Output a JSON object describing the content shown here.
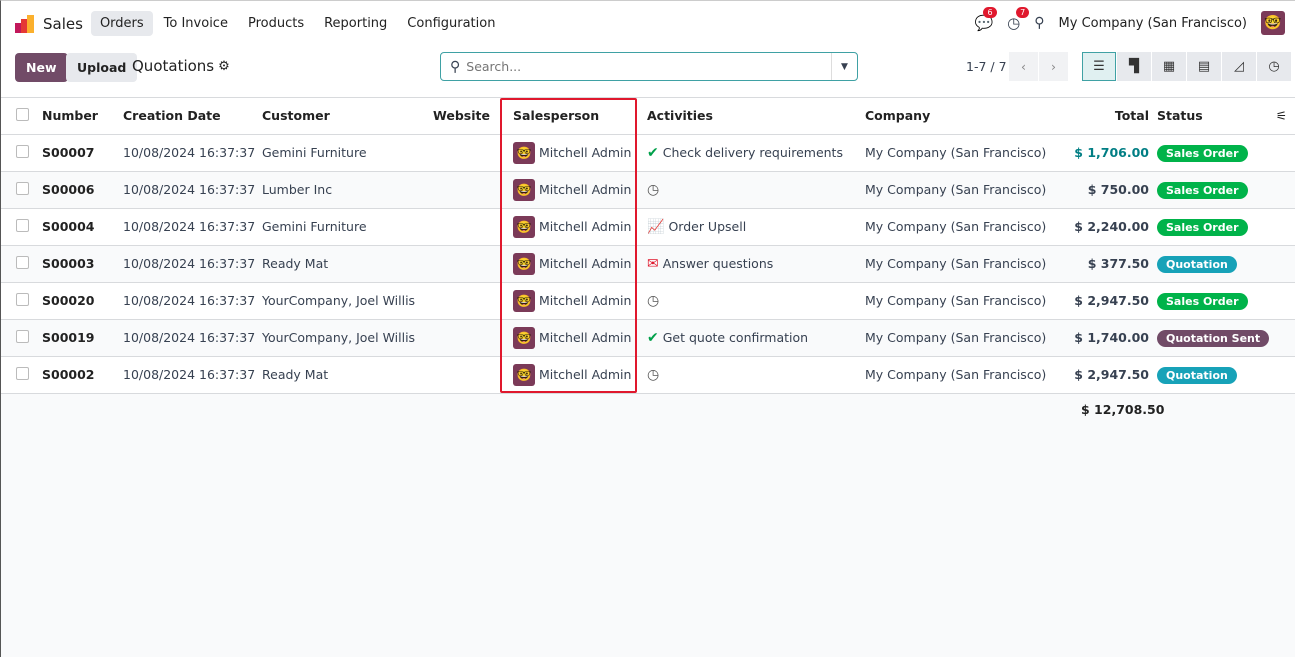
{
  "nav": {
    "brand": "Sales",
    "menu": [
      "Orders",
      "To Invoice",
      "Products",
      "Reporting",
      "Configuration"
    ],
    "active": "Orders",
    "messages_count": "6",
    "activities_count": "7",
    "company": "My Company (San Francisco)"
  },
  "control": {
    "new_label": "New",
    "upload_label": "Upload",
    "breadcrumb": "Quotations",
    "search_placeholder": "Search...",
    "pager": "1-7 / 7",
    "views": [
      "list",
      "kanban",
      "calendar",
      "pivot",
      "graph",
      "activity"
    ],
    "active_view": "list"
  },
  "table": {
    "headers": [
      "Number",
      "Creation Date",
      "Customer",
      "Website",
      "Salesperson",
      "Activities",
      "Company",
      "Total",
      "Status"
    ],
    "rows": [
      {
        "number": "S00007",
        "date": "10/08/2024 16:37:37",
        "customer": "Gemini Furniture",
        "website": "",
        "salesperson": "Mitchell Admin",
        "activity_icon": "check-icon",
        "activity": "Check delivery requirements",
        "company": "My Company (San Francisco)",
        "total": "$ 1,706.00",
        "status": "Sales Order",
        "status_color": "#00b34a",
        "total_color": "#017e84"
      },
      {
        "number": "S00006",
        "date": "10/08/2024 16:37:37",
        "customer": "Lumber Inc",
        "website": "",
        "salesperson": "Mitchell Admin",
        "activity_icon": "clock-icon",
        "activity": "",
        "company": "My Company (San Francisco)",
        "total": "$ 750.00",
        "status": "Sales Order",
        "status_color": "#00b34a"
      },
      {
        "number": "S00004",
        "date": "10/08/2024 16:37:37",
        "customer": "Gemini Furniture",
        "website": "",
        "salesperson": "Mitchell Admin",
        "activity_icon": "chart-line-icon",
        "activity": "Order Upsell",
        "company": "My Company (San Francisco)",
        "total": "$ 2,240.00",
        "status": "Sales Order",
        "status_color": "#00b34a"
      },
      {
        "number": "S00003",
        "date": "10/08/2024 16:37:37",
        "customer": "Ready Mat",
        "website": "",
        "salesperson": "Mitchell Admin",
        "activity_icon": "envelope-icon",
        "activity": "Answer questions",
        "company": "My Company (San Francisco)",
        "total": "$ 377.50",
        "status": "Quotation",
        "status_color": "#17a2b8"
      },
      {
        "number": "S00020",
        "date": "10/08/2024 16:37:37",
        "customer": "YourCompany, Joel Willis",
        "website": "",
        "salesperson": "Mitchell Admin",
        "activity_icon": "clock-icon",
        "activity": "",
        "company": "My Company (San Francisco)",
        "total": "$ 2,947.50",
        "status": "Sales Order",
        "status_color": "#00b34a"
      },
      {
        "number": "S00019",
        "date": "10/08/2024 16:37:37",
        "customer": "YourCompany, Joel Willis",
        "website": "",
        "salesperson": "Mitchell Admin",
        "activity_icon": "check-icon",
        "activity": "Get quote confirmation",
        "company": "My Company (San Francisco)",
        "total": "$ 1,740.00",
        "status": "Quotation Sent",
        "status_color": "#714b67"
      },
      {
        "number": "S00002",
        "date": "10/08/2024 16:37:37",
        "customer": "Ready Mat",
        "website": "",
        "salesperson": "Mitchell Admin",
        "activity_icon": "clock-icon",
        "activity": "",
        "company": "My Company (San Francisco)",
        "total": "$ 2,947.50",
        "status": "Quotation",
        "status_color": "#17a2b8"
      }
    ],
    "grand_total": "$ 12,708.50"
  },
  "colors": {
    "primary": "#714b67",
    "highlight": "#e0182d"
  }
}
